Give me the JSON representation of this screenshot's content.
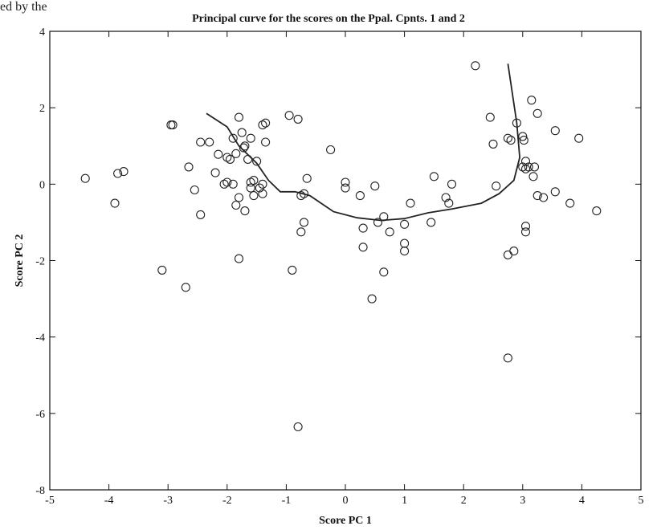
{
  "page": {
    "header_fragment": "ed by the"
  },
  "chart_data": {
    "type": "scatter",
    "title": "Principal curve for the scores on the Ppal. Cpnts. 1 and 2",
    "xlabel": "Score PC 1",
    "ylabel": "Score PC 2",
    "xlim": [
      -5,
      5
    ],
    "ylim": [
      -8,
      4
    ],
    "xticks": [
      -5,
      -4,
      -3,
      -2,
      -1,
      0,
      1,
      2,
      3,
      4,
      5
    ],
    "yticks": [
      -8,
      -6,
      -4,
      -2,
      0,
      2,
      4
    ],
    "grid": false,
    "points": [
      [
        -4.4,
        0.15
      ],
      [
        -3.85,
        0.28
      ],
      [
        -3.75,
        0.33
      ],
      [
        -3.9,
        -0.5
      ],
      [
        -2.95,
        1.55
      ],
      [
        -2.92,
        1.55
      ],
      [
        -2.65,
        0.45
      ],
      [
        -2.55,
        -0.15
      ],
      [
        -2.45,
        1.1
      ],
      [
        -2.3,
        1.1
      ],
      [
        -2.2,
        0.3
      ],
      [
        -2.15,
        0.78
      ],
      [
        -2.45,
        -0.8
      ],
      [
        -3.1,
        -2.25
      ],
      [
        -2.7,
        -2.7
      ],
      [
        -2.05,
        0.0
      ],
      [
        -2.0,
        0.05
      ],
      [
        -2.0,
        0.7
      ],
      [
        -1.95,
        0.65
      ],
      [
        -1.9,
        1.2
      ],
      [
        -1.8,
        1.75
      ],
      [
        -1.75,
        1.35
      ],
      [
        -1.7,
        1.0
      ],
      [
        -1.72,
        0.95
      ],
      [
        -1.65,
        0.65
      ],
      [
        -1.6,
        1.2
      ],
      [
        -1.85,
        0.8
      ],
      [
        -1.9,
        0.0
      ],
      [
        -1.8,
        -0.35
      ],
      [
        -1.85,
        -0.55
      ],
      [
        -1.7,
        -0.7
      ],
      [
        -1.6,
        0.05
      ],
      [
        -1.55,
        0.1
      ],
      [
        -1.6,
        -0.1
      ],
      [
        -1.55,
        -0.3
      ],
      [
        -1.5,
        0.6
      ],
      [
        -1.45,
        -0.1
      ],
      [
        -1.4,
        0.0
      ],
      [
        -1.4,
        1.55
      ],
      [
        -1.35,
        1.6
      ],
      [
        -1.35,
        1.1
      ],
      [
        -1.4,
        -0.25
      ],
      [
        -1.8,
        -1.95
      ],
      [
        -0.95,
        1.8
      ],
      [
        -0.8,
        1.7
      ],
      [
        -0.75,
        -0.3
      ],
      [
        -0.7,
        -0.25
      ],
      [
        -0.65,
        0.15
      ],
      [
        -0.7,
        -1.0
      ],
      [
        -0.75,
        -1.25
      ],
      [
        -0.9,
        -2.25
      ],
      [
        -0.8,
        -6.35
      ],
      [
        -0.25,
        0.9
      ],
      [
        0.0,
        0.05
      ],
      [
        0.0,
        -0.1
      ],
      [
        0.25,
        -0.3
      ],
      [
        0.3,
        -1.15
      ],
      [
        0.3,
        -1.65
      ],
      [
        0.5,
        -0.05
      ],
      [
        0.55,
        -1.0
      ],
      [
        0.65,
        -0.85
      ],
      [
        0.65,
        -2.3
      ],
      [
        0.75,
        -1.25
      ],
      [
        0.45,
        -3.0
      ],
      [
        1.0,
        -1.05
      ],
      [
        1.0,
        -1.55
      ],
      [
        1.0,
        -1.75
      ],
      [
        1.1,
        -0.5
      ],
      [
        1.45,
        -1.0
      ],
      [
        1.5,
        0.2
      ],
      [
        1.7,
        -0.35
      ],
      [
        1.75,
        -0.5
      ],
      [
        1.8,
        0.0
      ],
      [
        2.2,
        3.1
      ],
      [
        2.45,
        1.75
      ],
      [
        2.5,
        1.05
      ],
      [
        2.55,
        -0.05
      ],
      [
        2.75,
        1.2
      ],
      [
        2.8,
        1.15
      ],
      [
        2.9,
        1.6
      ],
      [
        3.0,
        1.25
      ],
      [
        3.02,
        1.15
      ],
      [
        3.0,
        0.45
      ],
      [
        3.05,
        0.4
      ],
      [
        3.05,
        0.6
      ],
      [
        3.1,
        0.45
      ],
      [
        3.15,
        2.2
      ],
      [
        3.2,
        0.45
      ],
      [
        3.18,
        0.2
      ],
      [
        3.25,
        1.85
      ],
      [
        3.25,
        -0.3
      ],
      [
        3.35,
        -0.35
      ],
      [
        3.05,
        -1.1
      ],
      [
        3.05,
        -1.25
      ],
      [
        2.85,
        -1.75
      ],
      [
        2.75,
        -1.85
      ],
      [
        2.75,
        -4.55
      ],
      [
        3.55,
        1.4
      ],
      [
        3.55,
        -0.2
      ],
      [
        3.8,
        -0.5
      ],
      [
        3.95,
        1.2
      ],
      [
        4.25,
        -0.7
      ]
    ],
    "curve": [
      [
        -2.35,
        1.85
      ],
      [
        -2.0,
        1.5
      ],
      [
        -1.8,
        1.0
      ],
      [
        -1.5,
        0.55
      ],
      [
        -1.3,
        0.1
      ],
      [
        -1.1,
        -0.2
      ],
      [
        -0.85,
        -0.2
      ],
      [
        -0.6,
        -0.3
      ],
      [
        -0.2,
        -0.72
      ],
      [
        0.2,
        -0.88
      ],
      [
        0.6,
        -0.95
      ],
      [
        1.0,
        -0.9
      ],
      [
        1.4,
        -0.75
      ],
      [
        1.8,
        -0.65
      ],
      [
        2.3,
        -0.5
      ],
      [
        2.6,
        -0.25
      ],
      [
        2.85,
        0.1
      ],
      [
        2.95,
        0.7
      ],
      [
        2.9,
        1.6
      ],
      [
        2.75,
        3.15
      ]
    ],
    "colors": {
      "marker": "#222222",
      "curve": "#222222",
      "axes": "#111111"
    }
  }
}
